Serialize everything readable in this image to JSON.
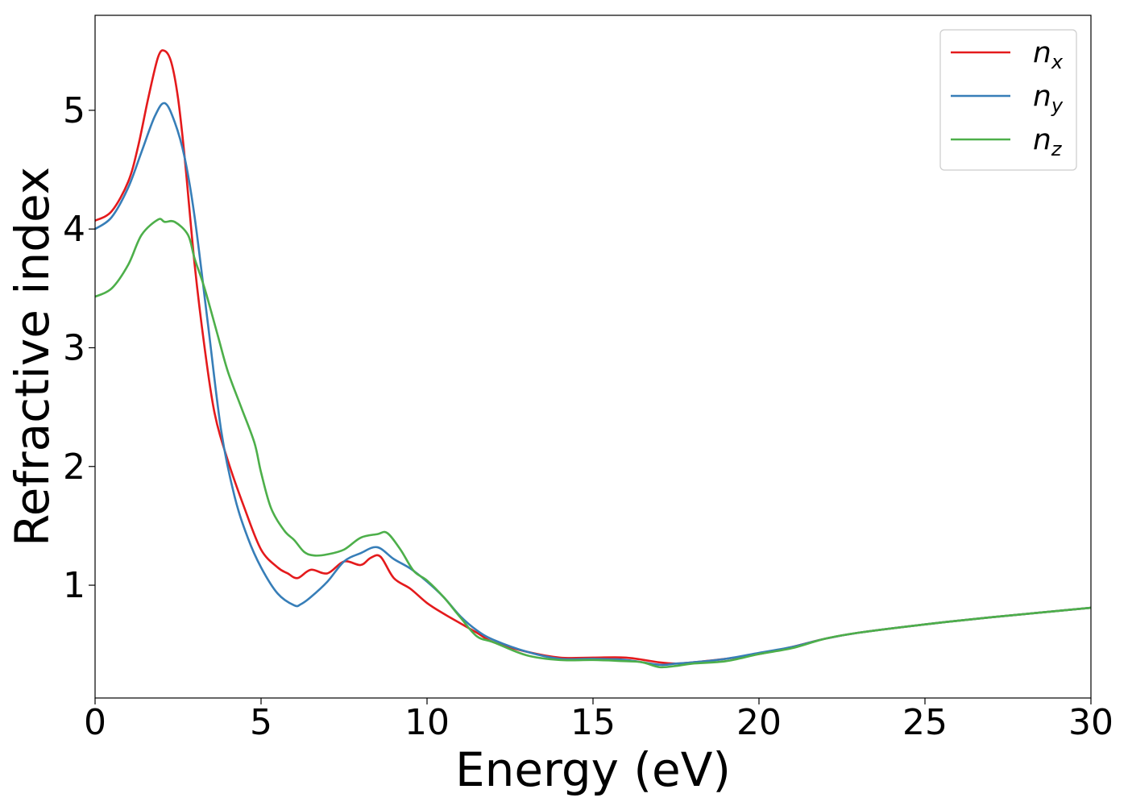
{
  "chart_data": {
    "type": "line",
    "xlabel": "Energy (eV)",
    "ylabel": "Refractive index",
    "xlim": [
      0,
      30
    ],
    "ylim": [
      0.05,
      5.8
    ],
    "xticks": [
      "0",
      "5",
      "10",
      "15",
      "20",
      "25",
      "30"
    ],
    "yticks": [
      "1",
      "2",
      "3",
      "4",
      "5"
    ],
    "grid": false,
    "legend_position": "top-right",
    "series": [
      {
        "name": "n_x",
        "label_base": "n",
        "label_sub": "x",
        "color": "#e41a1c",
        "x": [
          0,
          0.5,
          1.0,
          1.3,
          1.6,
          1.9,
          2.1,
          2.3,
          2.5,
          2.7,
          3.0,
          3.3,
          3.6,
          4.0,
          4.5,
          5.0,
          5.5,
          5.8,
          6.1,
          6.5,
          7.0,
          7.5,
          8.0,
          8.3,
          8.6,
          9.0,
          9.5,
          10.0,
          10.5,
          11.0,
          11.5,
          12.0,
          13.0,
          14.0,
          15.0,
          16.0,
          17.0,
          17.5,
          18.0,
          19.0,
          20.0,
          21.0,
          22.0,
          23.0,
          25.0,
          27.0,
          30.0
        ],
        "values": [
          4.07,
          4.15,
          4.4,
          4.7,
          5.1,
          5.45,
          5.5,
          5.4,
          5.1,
          4.6,
          3.7,
          3.0,
          2.45,
          2.05,
          1.65,
          1.3,
          1.15,
          1.1,
          1.06,
          1.13,
          1.1,
          1.2,
          1.17,
          1.23,
          1.24,
          1.06,
          0.97,
          0.85,
          0.76,
          0.68,
          0.6,
          0.52,
          0.44,
          0.39,
          0.39,
          0.39,
          0.35,
          0.34,
          0.35,
          0.38,
          0.42,
          0.48,
          0.55,
          0.6,
          0.67,
          0.73,
          0.81
        ]
      },
      {
        "name": "n_y",
        "label_base": "n",
        "label_sub": "y",
        "color": "#377eb8",
        "x": [
          0,
          0.5,
          1.0,
          1.4,
          1.8,
          2.1,
          2.4,
          2.7,
          3.0,
          3.4,
          3.8,
          4.2,
          4.6,
          5.0,
          5.5,
          6.0,
          6.2,
          6.5,
          7.0,
          7.5,
          8.0,
          8.5,
          9.0,
          9.5,
          10.0,
          10.5,
          11.0,
          11.5,
          12.0,
          13.0,
          14.0,
          15.0,
          16.0,
          17.0,
          17.5,
          18.0,
          19.0,
          20.0,
          21.0,
          22.0,
          23.0,
          25.0,
          27.0,
          30.0
        ],
        "values": [
          4.0,
          4.1,
          4.35,
          4.65,
          4.95,
          5.06,
          4.9,
          4.6,
          4.1,
          3.2,
          2.3,
          1.75,
          1.4,
          1.15,
          0.93,
          0.83,
          0.84,
          0.9,
          1.03,
          1.2,
          1.27,
          1.32,
          1.22,
          1.14,
          1.03,
          0.9,
          0.74,
          0.62,
          0.54,
          0.44,
          0.38,
          0.38,
          0.37,
          0.33,
          0.34,
          0.35,
          0.38,
          0.43,
          0.48,
          0.55,
          0.6,
          0.67,
          0.73,
          0.81
        ]
      },
      {
        "name": "n_z",
        "label_base": "n",
        "label_sub": "z",
        "color": "#4daf4a",
        "x": [
          0,
          0.5,
          1.0,
          1.4,
          1.9,
          2.1,
          2.4,
          2.8,
          3.0,
          3.3,
          3.7,
          4.0,
          4.4,
          4.8,
          5.0,
          5.3,
          5.7,
          6.0,
          6.3,
          6.6,
          7.0,
          7.5,
          8.0,
          8.5,
          8.8,
          9.2,
          9.6,
          10.0,
          10.5,
          11.0,
          11.5,
          12.0,
          13.0,
          14.0,
          15.0,
          16.0,
          16.5,
          17.0,
          17.5,
          18.0,
          19.0,
          20.0,
          21.0,
          22.0,
          23.0,
          25.0,
          27.0,
          30.0
        ],
        "values": [
          3.43,
          3.5,
          3.7,
          3.95,
          4.08,
          4.06,
          4.06,
          3.95,
          3.75,
          3.5,
          3.1,
          2.8,
          2.5,
          2.2,
          1.95,
          1.65,
          1.46,
          1.38,
          1.28,
          1.25,
          1.26,
          1.3,
          1.4,
          1.43,
          1.44,
          1.3,
          1.12,
          1.04,
          0.9,
          0.73,
          0.57,
          0.52,
          0.41,
          0.37,
          0.37,
          0.36,
          0.35,
          0.31,
          0.32,
          0.34,
          0.36,
          0.42,
          0.47,
          0.55,
          0.6,
          0.67,
          0.73,
          0.81
        ]
      }
    ]
  }
}
